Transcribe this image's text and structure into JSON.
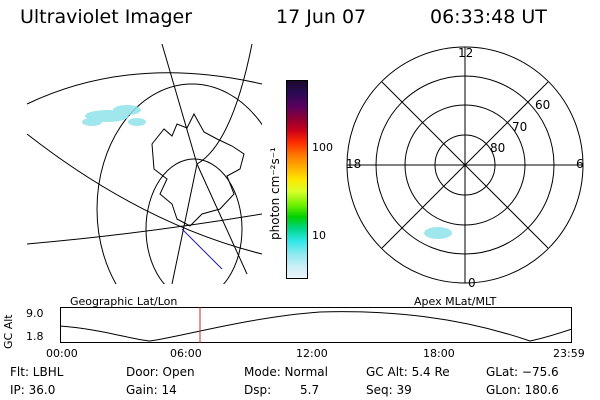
{
  "header": {
    "title": "Ultraviolet Imager",
    "date": "17 Jun 07",
    "time": "06:33:48 UT"
  },
  "colorbar": {
    "unit_label": "photon cm⁻²s⁻¹",
    "ticks": [
      "100",
      "10"
    ],
    "colors": [
      "#1b0a2e",
      "#2a0a55",
      "#5b005e",
      "#8c0036",
      "#c8001a",
      "#ff2a00",
      "#ff7a00",
      "#ffb000",
      "#ffe600",
      "#d9ff29",
      "#6ef000",
      "#00d000",
      "#00d68b",
      "#2ee6e6",
      "#8fe9f0",
      "#c9eef5",
      "#eef6fa"
    ]
  },
  "geo_panel": {
    "label": "Geographic Lat/Lon"
  },
  "polar_panel": {
    "label": "Apex MLat/MLT",
    "mlt_labels": {
      "top": "12",
      "left": "18",
      "right": "6",
      "bottom": "0"
    },
    "lat_labels": [
      "60",
      "70",
      "80"
    ]
  },
  "altitude_plot": {
    "ylabel": "GC Alt",
    "y_max": "9.0",
    "y_min": "1.8",
    "x_ticks": [
      "00:00",
      "06:00",
      "12:00",
      "18:00",
      "23:59"
    ]
  },
  "info": {
    "flt": "Flt: LBHL",
    "door": "Door: Open",
    "mode": "Mode: Normal",
    "gc_alt": "GC Alt: 5.4 Re",
    "glat": "GLat: −75.6",
    "ip": "IP: 36.0",
    "gain": "Gain: 14",
    "dsp_label": "Dsp:",
    "dsp_value": "5.7",
    "seq": "Seq: 39",
    "glon": "GLon: 180.6"
  }
}
